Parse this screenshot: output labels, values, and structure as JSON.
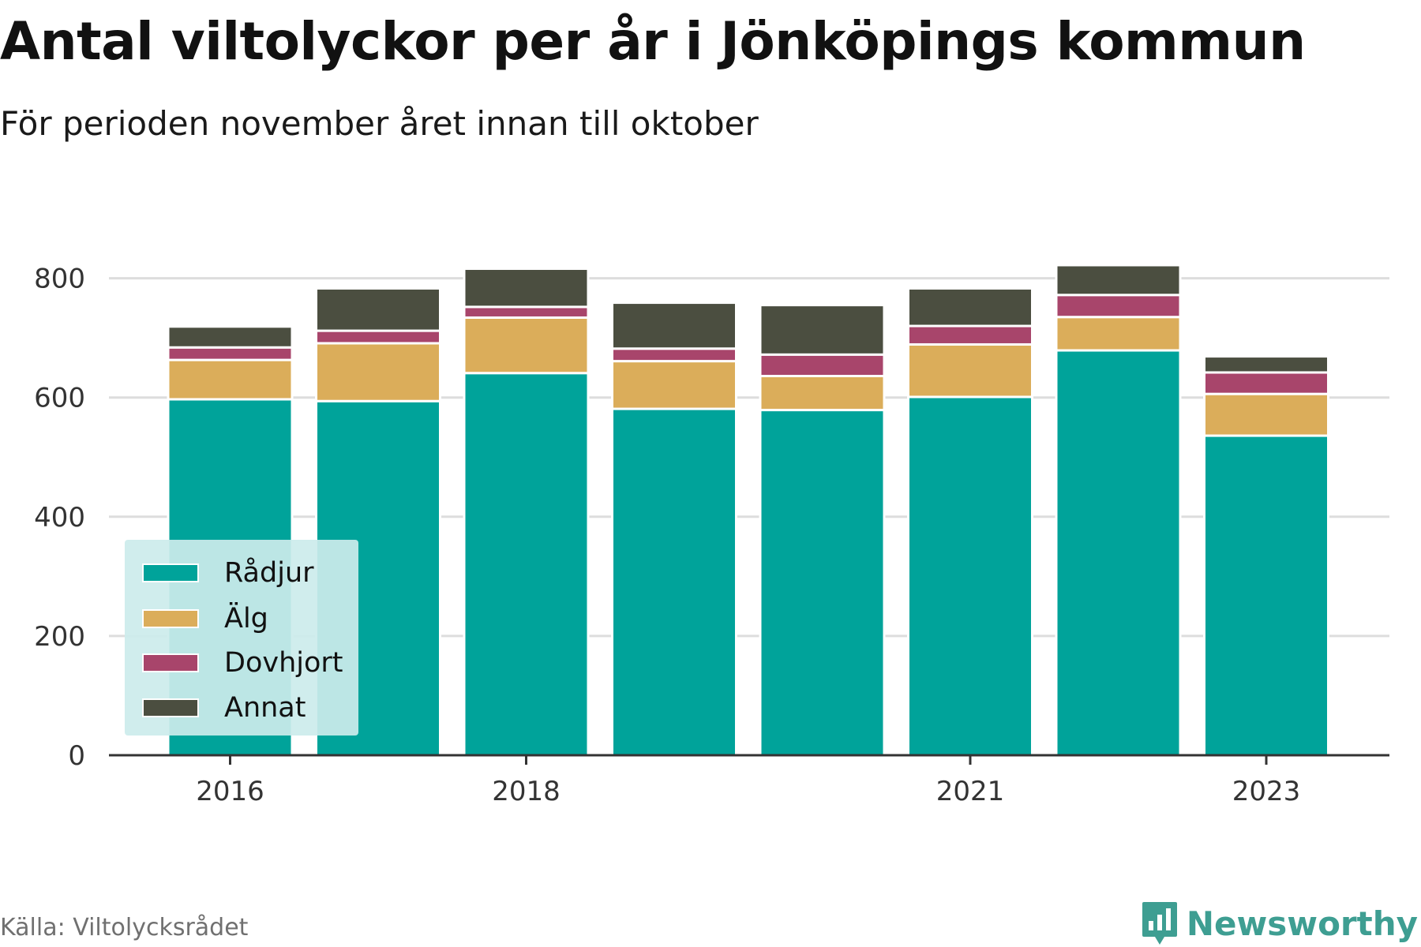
{
  "header": {
    "title": "Antal viltolyckor per år i Jönköpings kommun",
    "subtitle": "För perioden november året innan till oktober"
  },
  "footer": {
    "source": "Källa: Viltolycksrådet",
    "brand": "Newsworthy",
    "brand_icon": "bar-chart-logo-icon",
    "brand_color": "#3e9e92"
  },
  "chart_data": {
    "type": "bar",
    "stacked": true,
    "categories": [
      "2016",
      "2017",
      "2018",
      "2019",
      "2020",
      "2021",
      "2022",
      "2023"
    ],
    "tick_labels": [
      "2016",
      "2018",
      "2021",
      "2023"
    ],
    "series": [
      {
        "name": "Rådjur",
        "color": "#00a39a",
        "values": [
          597,
          594,
          641,
          581,
          579,
          601,
          679,
          536
        ]
      },
      {
        "name": "Älg",
        "color": "#dbad5a",
        "values": [
          66,
          97,
          93,
          80,
          57,
          88,
          56,
          70
        ]
      },
      {
        "name": "Dovhjort",
        "color": "#a8456b",
        "values": [
          21,
          21,
          18,
          21,
          36,
          31,
          37,
          36
        ]
      },
      {
        "name": "Annat",
        "color": "#4b4e40",
        "values": [
          35,
          71,
          64,
          77,
          83,
          63,
          50,
          27
        ]
      }
    ],
    "ylim": [
      0,
      850
    ],
    "yticks": [
      0,
      200,
      400,
      600,
      800
    ],
    "grid": true,
    "legend_position": "bottom-left",
    "xlabel": "",
    "ylabel": ""
  }
}
